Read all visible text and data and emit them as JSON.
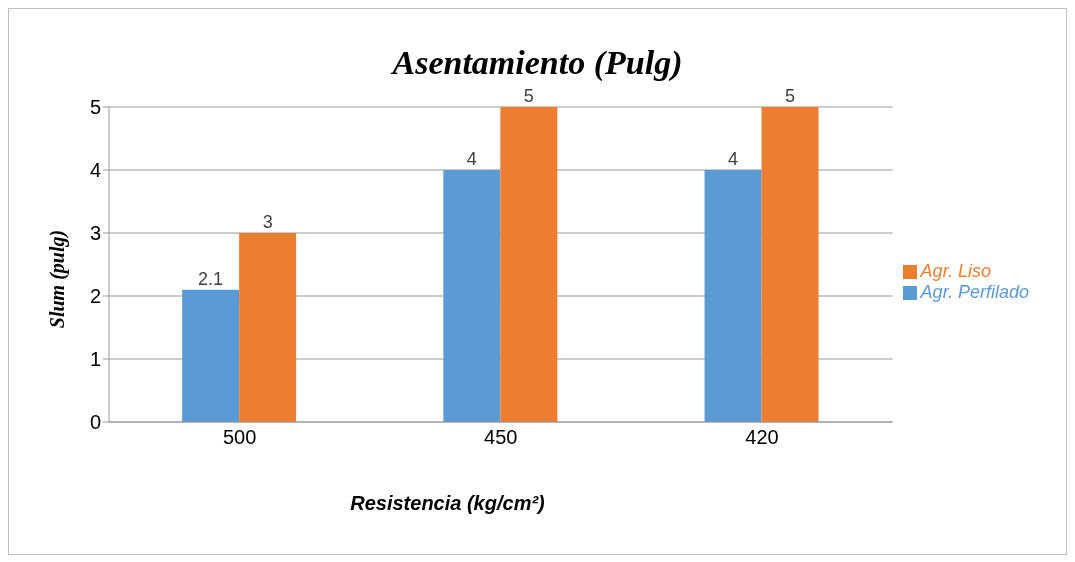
{
  "chart_data": {
    "type": "bar",
    "title": "Asentamiento (Pulg)",
    "xlabel": "Resistencia (kg/cm²)",
    "ylabel": "Slum (pulg)",
    "categories": [
      "500",
      "450",
      "420"
    ],
    "series": [
      {
        "name": "Agr. Perfilado",
        "color": "#5b9bd5",
        "values": [
          2.1,
          4,
          4
        ]
      },
      {
        "name": "Agr. Liso",
        "color": "#ed7d31",
        "values": [
          3,
          5,
          5
        ]
      }
    ],
    "ylim": [
      0,
      5
    ],
    "yticks": [
      0,
      1,
      2,
      3,
      4,
      5
    ],
    "grid": "y",
    "legend": "right",
    "data_labels": true
  }
}
